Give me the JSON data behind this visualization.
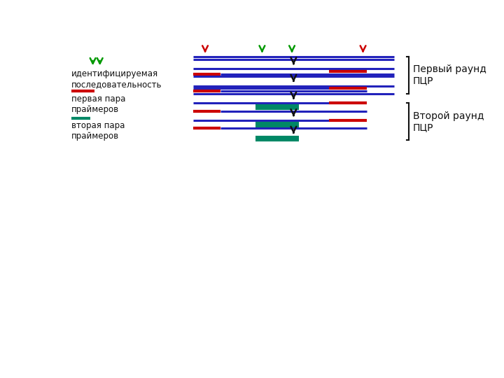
{
  "fig_width": 7.2,
  "fig_height": 5.4,
  "bg_color": "#ffffff",
  "blue": "#2222bb",
  "red": "#cc0000",
  "green": "#009900",
  "teal": "#008866",
  "black": "#111111",
  "legend_text1": "идентифицируемая\nпоследовательность",
  "legend_text2": "первая пара\nпраймеров",
  "legend_text3": "вторая пара\nпраймеров",
  "label_round1": "Первый раунд\nПЦР",
  "label_round2": "Второй раунд\nПЦР",
  "lw_blue": 2.2,
  "lw_short": 3.0
}
